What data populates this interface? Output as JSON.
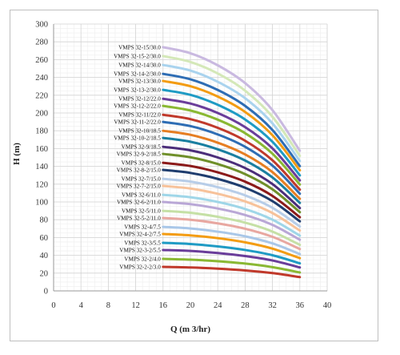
{
  "chart_data": {
    "type": "line",
    "title": "",
    "xlabel": "Q (m 3/hr)",
    "ylabel": "H (m)",
    "xlim": [
      0,
      40
    ],
    "ylim": [
      0,
      300
    ],
    "x_ticks": [
      "0",
      "4",
      "8",
      "12",
      "16",
      "20",
      "24",
      "28",
      "32",
      "36",
      "40"
    ],
    "y_ticks": [
      "0",
      "20",
      "40",
      "60",
      "80",
      "100",
      "120",
      "140",
      "160",
      "180",
      "200",
      "220",
      "240",
      "260",
      "280",
      "300"
    ],
    "grid": true,
    "legend": "inline-left",
    "x": [
      16,
      20,
      24,
      28,
      32,
      36
    ],
    "series": [
      {
        "name": "VMPS 32-2-2/3.0",
        "color": "#c0392b",
        "values": [
          27,
          26.3,
          25,
          23,
          20,
          15.5
        ]
      },
      {
        "name": "VMPS 32-2/4.0",
        "color": "#8ab833",
        "values": [
          36,
          35.1,
          33.3,
          30.7,
          26.7,
          20.7
        ]
      },
      {
        "name": "VMPS 32-3-2/5.5",
        "color": "#6a3d9a",
        "values": [
          46,
          44.9,
          42.6,
          39.2,
          34.2,
          26.4
        ]
      },
      {
        "name": "VMPS 32-3/5.5",
        "color": "#1f9bc4",
        "values": [
          54,
          52.7,
          50,
          46,
          40.1,
          31
        ]
      },
      {
        "name": "VMPS 32-4-2/7.5",
        "color": "#f39c12",
        "values": [
          64,
          62.4,
          59.3,
          54.6,
          47.5,
          36.8
        ]
      },
      {
        "name": "VMPS 32-4/7.5",
        "color": "#a9c7e8",
        "values": [
          72,
          70.2,
          66.6,
          61.4,
          53.4,
          41.4
        ]
      },
      {
        "name": "VMPS 32-5-2/11.0",
        "color": "#e8a7a0",
        "values": [
          82,
          80,
          75.9,
          69.9,
          60.8,
          47.1
        ]
      },
      {
        "name": "VMPS 32-5/11.0",
        "color": "#c5e0a5",
        "values": [
          90,
          87.8,
          83.3,
          76.7,
          66.7,
          51.7
        ]
      },
      {
        "name": "VMPS 32-6-2/11.0",
        "color": "#b9a7d6",
        "values": [
          100,
          97.5,
          92.6,
          85.3,
          74.2,
          57.5
        ]
      },
      {
        "name": "VMPS 32-6/11.0",
        "color": "#9fd6e8",
        "values": [
          108,
          105.3,
          100,
          92.1,
          80.1,
          62.1
        ]
      },
      {
        "name": "VMPS 32-7-2/15.0",
        "color": "#f7c29a",
        "values": [
          118,
          115.1,
          109.2,
          100.6,
          87.5,
          67.8
        ]
      },
      {
        "name": "VMPS 32-7/15.0",
        "color": "#b7cde8",
        "values": [
          126,
          122.9,
          116.6,
          107.4,
          93.4,
          72.4
        ]
      },
      {
        "name": "VMPS 32-8-2/15.0",
        "color": "#1f3d6e",
        "values": [
          136,
          132.6,
          125.9,
          116,
          100.9,
          78.2
        ]
      },
      {
        "name": "VMPS 32-8/15.0",
        "color": "#8b1a1a",
        "values": [
          144,
          140.4,
          133.3,
          122.8,
          106.8,
          82.8
        ]
      },
      {
        "name": "VMPS 32-9-2/18.5",
        "color": "#6f8f2a",
        "values": [
          154,
          150.2,
          142.6,
          131.3,
          114.2,
          88.5
        ]
      },
      {
        "name": "VMPS 32-9/18.5",
        "color": "#4b2d7a",
        "values": [
          162,
          158,
          150,
          138.1,
          120.1,
          93.1
        ]
      },
      {
        "name": "VMPS 32-10-2/18.5",
        "color": "#1a7fa0",
        "values": [
          172,
          167.7,
          159.2,
          146.6,
          127.5,
          98.9
        ]
      },
      {
        "name": "VMPS 32-10/18.5",
        "color": "#e67e22",
        "values": [
          180,
          175.5,
          166.6,
          153.4,
          133.5,
          103.5
        ]
      },
      {
        "name": "VMPS 32-11-2/22.0",
        "color": "#2e6db4",
        "values": [
          190,
          185.3,
          175.9,
          162,
          140.9,
          109.2
        ]
      },
      {
        "name": "VMPS 32-11/22.0",
        "color": "#c0392b",
        "values": [
          198,
          193.1,
          183.3,
          168.8,
          146.8,
          113.8
        ]
      },
      {
        "name": "VMPS 32-12-2/22.0",
        "color": "#8ab833",
        "values": [
          208,
          202.8,
          192.5,
          177.3,
          154.2,
          119.6
        ]
      },
      {
        "name": "VMPS 32-12/22.0",
        "color": "#6a3d9a",
        "values": [
          216,
          210.6,
          200,
          184.1,
          160.2,
          124.2
        ]
      },
      {
        "name": "VMPS 32-13-2/30.0",
        "color": "#1f9bc4",
        "values": [
          226,
          220.4,
          209.2,
          192.7,
          167.6,
          129.9
        ]
      },
      {
        "name": "VMPS 32-13/30.0",
        "color": "#f39c12",
        "values": [
          236,
          230.1,
          218.5,
          201.2,
          175,
          135.6
        ]
      },
      {
        "name": "VMPS 32-14-2/30.0",
        "color": "#2e6db4",
        "values": [
          244,
          237.9,
          225.9,
          208,
          180.9,
          140.3
        ]
      },
      {
        "name": "VMPS 32-14/30.0",
        "color": "#a9d3ee",
        "values": [
          254,
          247.7,
          235.1,
          216.6,
          188.3,
          146
        ]
      },
      {
        "name": "VMPS 32-15-2/30.0",
        "color": "#d4e8b8",
        "values": [
          264,
          257.4,
          244.4,
          225.1,
          195.7,
          151.8
        ]
      },
      {
        "name": "VMPS 32-15/30.0",
        "color": "#c9b9e0",
        "values": [
          274,
          267.2,
          253.6,
          233.6,
          203.2,
          157.5
        ]
      }
    ]
  }
}
